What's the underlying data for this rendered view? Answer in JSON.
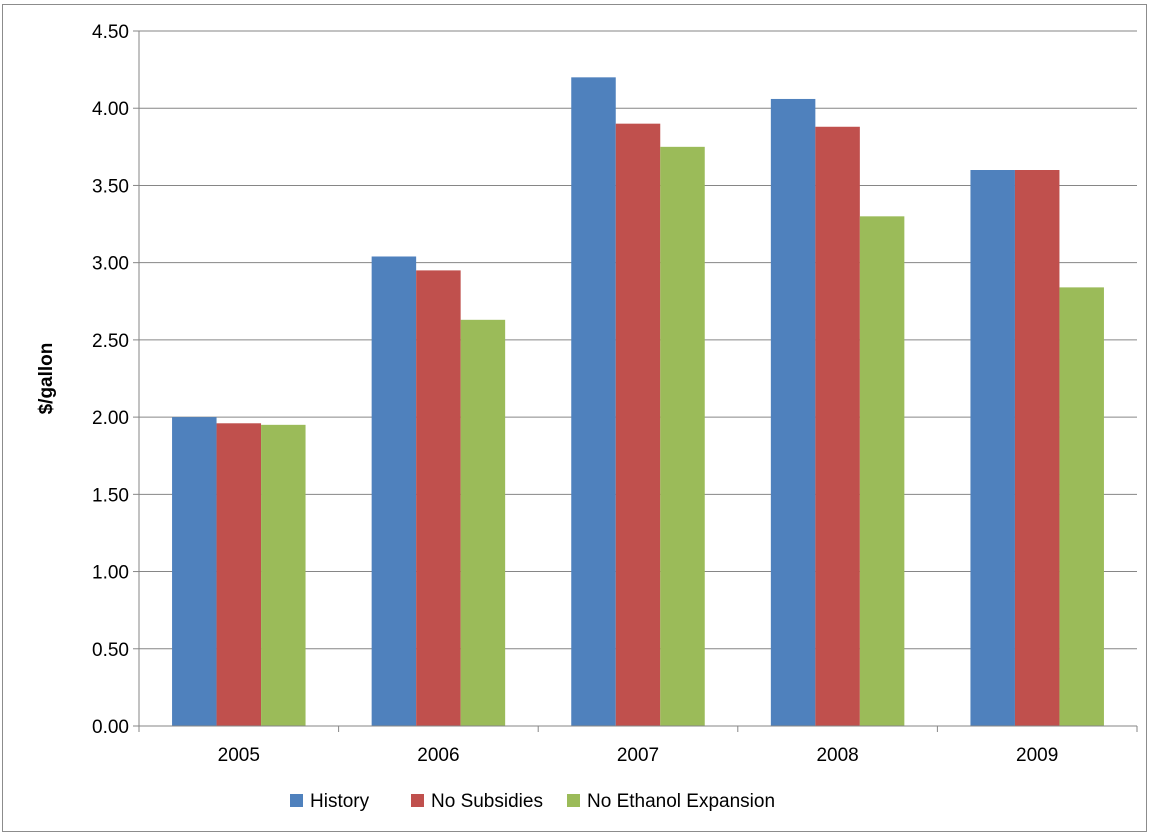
{
  "chart_data": {
    "type": "bar",
    "title": "",
    "xlabel": "",
    "ylabel": "$/gallon",
    "categories": [
      "2005",
      "2006",
      "2007",
      "2008",
      "2009"
    ],
    "series": [
      {
        "name": "History",
        "color": "#4f81bd",
        "values": [
          2.0,
          3.04,
          4.2,
          4.06,
          3.6
        ]
      },
      {
        "name": "No Subsidies",
        "color": "#c0504d",
        "values": [
          1.96,
          2.95,
          3.9,
          3.88,
          3.6
        ]
      },
      {
        "name": "No Ethanol Expansion",
        "color": "#9bbb59",
        "values": [
          1.95,
          2.63,
          3.75,
          3.3,
          2.84
        ]
      }
    ],
    "ylim": [
      0,
      4.5
    ],
    "yticks": [
      "0.00",
      "0.50",
      "1.00",
      "1.50",
      "2.00",
      "2.50",
      "3.00",
      "3.50",
      "4.00",
      "4.50"
    ],
    "grid": true,
    "legend_position": "bottom"
  }
}
